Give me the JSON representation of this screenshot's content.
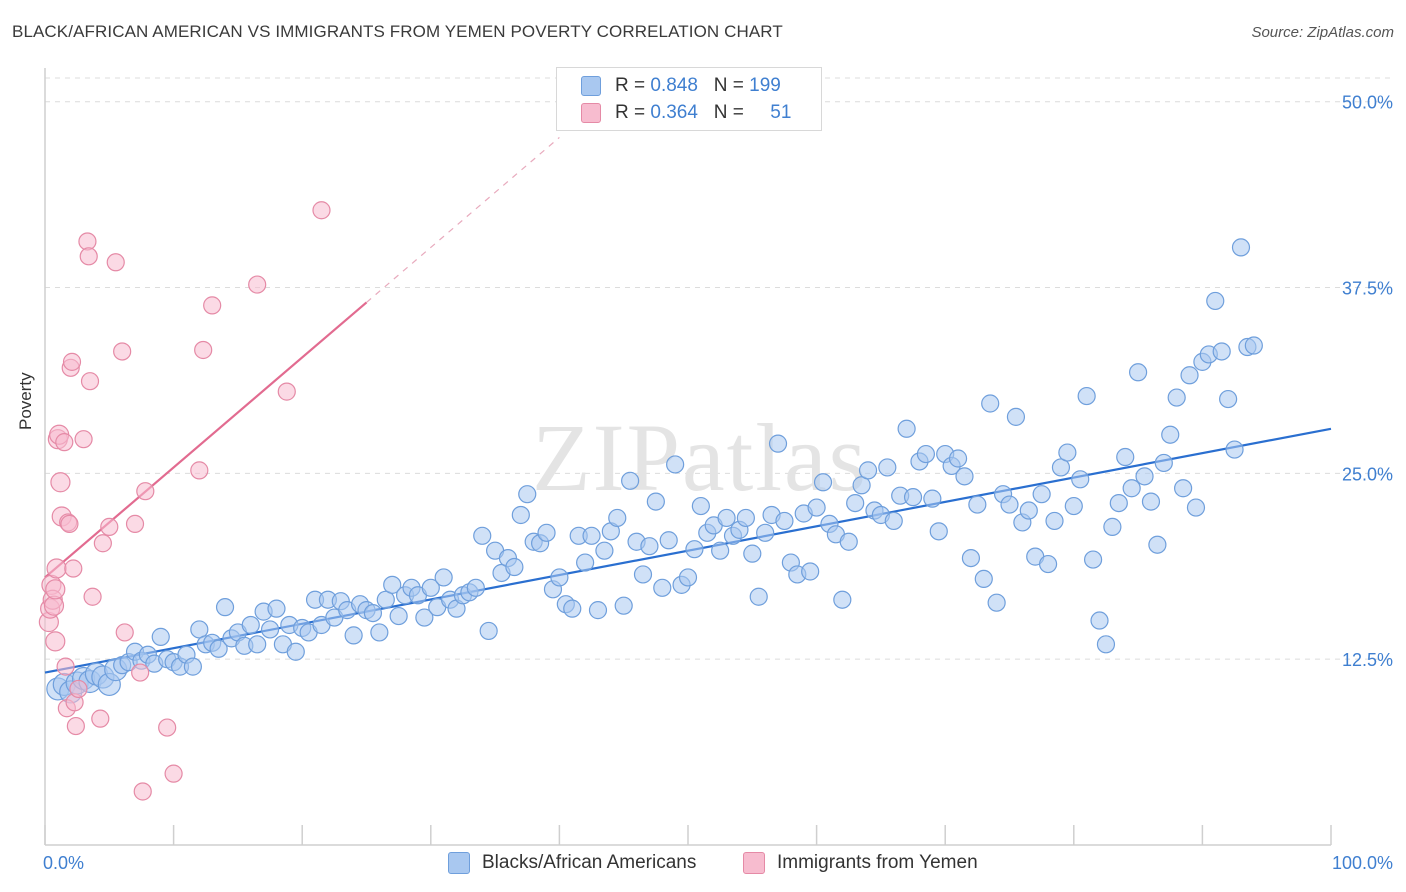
{
  "title": "BLACK/AFRICAN AMERICAN VS IMMIGRANTS FROM YEMEN POVERTY CORRELATION CHART",
  "source": "Source: ZipAtlas.com",
  "watermark": "ZIPatlas",
  "legend": {
    "r_label": "R =",
    "n_label": "N =",
    "rows": [
      {
        "r": "0.848",
        "n": "199",
        "color": "#a9c8f0",
        "border": "#6f9fdc"
      },
      {
        "r": "0.364",
        "n": "51",
        "color": "#f7bccf",
        "border": "#e58aa6"
      }
    ]
  },
  "bottom_legend": [
    "Blacks/African Americans",
    "Immigrants from Yemen"
  ],
  "chart_data": {
    "type": "scatter",
    "xlabel": "",
    "ylabel": "Poverty",
    "xlim": [
      0,
      100
    ],
    "ylim": [
      0,
      52
    ],
    "x_tick_labels": [
      "0.0%",
      "100.0%"
    ],
    "y_ticks": [
      12.5,
      25.0,
      37.5,
      50.0
    ],
    "y_tick_labels": [
      "12.5%",
      "25.0%",
      "37.5%",
      "50.0%"
    ],
    "grid": true,
    "series": [
      {
        "name": "Blacks/African Americans",
        "color": "#a9c8f0",
        "edge": "#6f9fdc",
        "trend": {
          "x": [
            0,
            100
          ],
          "y": [
            11.6,
            28.0
          ],
          "color": "#2a6fd0",
          "dashed": false
        },
        "points": [
          [
            1,
            10.5
          ],
          [
            1.5,
            10.8
          ],
          [
            2,
            10.3
          ],
          [
            2.5,
            10.9
          ],
          [
            3,
            11.2
          ],
          [
            3.5,
            11.0
          ],
          [
            4,
            11.5
          ],
          [
            4.5,
            11.3
          ],
          [
            5,
            10.8
          ],
          [
            5.5,
            11.8
          ],
          [
            6,
            12.1
          ],
          [
            6.5,
            12.3
          ],
          [
            7,
            13.0
          ],
          [
            7.5,
            12.4
          ],
          [
            8,
            12.8
          ],
          [
            8.5,
            12.2
          ],
          [
            9,
            14.0
          ],
          [
            9.5,
            12.5
          ],
          [
            10,
            12.3
          ],
          [
            10.5,
            12.0
          ],
          [
            11,
            12.8
          ],
          [
            11.5,
            12.0
          ],
          [
            12,
            14.5
          ],
          [
            12.5,
            13.5
          ],
          [
            13,
            13.6
          ],
          [
            13.5,
            13.2
          ],
          [
            14,
            16.0
          ],
          [
            14.5,
            13.9
          ],
          [
            15,
            14.3
          ],
          [
            15.5,
            13.4
          ],
          [
            16,
            14.8
          ],
          [
            16.5,
            13.5
          ],
          [
            17,
            15.7
          ],
          [
            17.5,
            14.5
          ],
          [
            18,
            15.9
          ],
          [
            18.5,
            13.5
          ],
          [
            19,
            14.8
          ],
          [
            19.5,
            13.0
          ],
          [
            20,
            14.6
          ],
          [
            20.5,
            14.3
          ],
          [
            21,
            16.5
          ],
          [
            21.5,
            14.8
          ],
          [
            22,
            16.5
          ],
          [
            22.5,
            15.3
          ],
          [
            23,
            16.4
          ],
          [
            23.5,
            15.8
          ],
          [
            24,
            14.1
          ],
          [
            24.5,
            16.2
          ],
          [
            25,
            15.8
          ],
          [
            25.5,
            15.6
          ],
          [
            26,
            14.3
          ],
          [
            26.5,
            16.5
          ],
          [
            27,
            17.5
          ],
          [
            27.5,
            15.4
          ],
          [
            28,
            16.8
          ],
          [
            28.5,
            17.3
          ],
          [
            29,
            16.8
          ],
          [
            29.5,
            15.3
          ],
          [
            30,
            17.3
          ],
          [
            30.5,
            16.0
          ],
          [
            31,
            18.0
          ],
          [
            31.5,
            16.5
          ],
          [
            32,
            15.9
          ],
          [
            32.5,
            16.8
          ],
          [
            33,
            17.0
          ],
          [
            33.5,
            17.3
          ],
          [
            34,
            20.8
          ],
          [
            34.5,
            14.4
          ],
          [
            35,
            19.8
          ],
          [
            35.5,
            18.3
          ],
          [
            36,
            19.3
          ],
          [
            36.5,
            18.7
          ],
          [
            37,
            22.2
          ],
          [
            37.5,
            23.6
          ],
          [
            38,
            20.4
          ],
          [
            38.5,
            20.3
          ],
          [
            39,
            21.0
          ],
          [
            39.5,
            17.2
          ],
          [
            40,
            18.0
          ],
          [
            40.5,
            16.2
          ],
          [
            41,
            15.9
          ],
          [
            41.5,
            20.8
          ],
          [
            42,
            19.0
          ],
          [
            42.5,
            20.8
          ],
          [
            43,
            15.8
          ],
          [
            43.5,
            19.8
          ],
          [
            44,
            21.1
          ],
          [
            44.5,
            22.0
          ],
          [
            45,
            16.1
          ],
          [
            45.5,
            24.5
          ],
          [
            46,
            20.4
          ],
          [
            46.5,
            18.2
          ],
          [
            47,
            20.1
          ],
          [
            47.5,
            23.1
          ],
          [
            48,
            17.3
          ],
          [
            48.5,
            20.5
          ],
          [
            49,
            25.6
          ],
          [
            49.5,
            17.5
          ],
          [
            50,
            18.0
          ],
          [
            50.5,
            19.9
          ],
          [
            51,
            22.8
          ],
          [
            51.5,
            21.0
          ],
          [
            52,
            21.5
          ],
          [
            52.5,
            19.8
          ],
          [
            53,
            22.0
          ],
          [
            53.5,
            20.8
          ],
          [
            54,
            21.2
          ],
          [
            54.5,
            22.0
          ],
          [
            55,
            19.6
          ],
          [
            55.5,
            16.7
          ],
          [
            56,
            21.0
          ],
          [
            56.5,
            22.2
          ],
          [
            57,
            27.0
          ],
          [
            57.5,
            21.8
          ],
          [
            58,
            19.0
          ],
          [
            58.5,
            18.2
          ],
          [
            59,
            22.3
          ],
          [
            59.5,
            18.4
          ],
          [
            60,
            22.7
          ],
          [
            60.5,
            24.4
          ],
          [
            61,
            21.6
          ],
          [
            61.5,
            20.9
          ],
          [
            62,
            16.5
          ],
          [
            62.5,
            20.4
          ],
          [
            63,
            23.0
          ],
          [
            63.5,
            24.2
          ],
          [
            64,
            25.2
          ],
          [
            64.5,
            22.5
          ],
          [
            65,
            22.2
          ],
          [
            65.5,
            25.4
          ],
          [
            66,
            21.8
          ],
          [
            66.5,
            23.5
          ],
          [
            67,
            28.0
          ],
          [
            67.5,
            23.4
          ],
          [
            68,
            25.8
          ],
          [
            68.5,
            26.3
          ],
          [
            69,
            23.3
          ],
          [
            69.5,
            21.1
          ],
          [
            70,
            26.3
          ],
          [
            70.5,
            25.5
          ],
          [
            71,
            26.0
          ],
          [
            71.5,
            24.8
          ],
          [
            72,
            19.3
          ],
          [
            72.5,
            22.9
          ],
          [
            73,
            17.9
          ],
          [
            73.5,
            29.7
          ],
          [
            74,
            16.3
          ],
          [
            74.5,
            23.6
          ],
          [
            75,
            22.9
          ],
          [
            75.5,
            28.8
          ],
          [
            76,
            21.7
          ],
          [
            76.5,
            22.5
          ],
          [
            77,
            19.4
          ],
          [
            77.5,
            23.6
          ],
          [
            78,
            18.9
          ],
          [
            78.5,
            21.8
          ],
          [
            79,
            25.4
          ],
          [
            79.5,
            26.4
          ],
          [
            80,
            22.8
          ],
          [
            80.5,
            24.6
          ],
          [
            81,
            30.2
          ],
          [
            81.5,
            19.2
          ],
          [
            82,
            15.1
          ],
          [
            82.5,
            13.5
          ],
          [
            83,
            21.4
          ],
          [
            83.5,
            23.0
          ],
          [
            84,
            26.1
          ],
          [
            84.5,
            24.0
          ],
          [
            85,
            31.8
          ],
          [
            85.5,
            24.8
          ],
          [
            86,
            23.1
          ],
          [
            86.5,
            20.2
          ],
          [
            87,
            25.7
          ],
          [
            87.5,
            27.6
          ],
          [
            88,
            30.1
          ],
          [
            88.5,
            24.0
          ],
          [
            89,
            31.6
          ],
          [
            89.5,
            22.7
          ],
          [
            90,
            32.5
          ],
          [
            90.5,
            33.0
          ],
          [
            91,
            36.6
          ],
          [
            91.5,
            33.2
          ],
          [
            92,
            30.0
          ],
          [
            92.5,
            26.6
          ],
          [
            93,
            40.2
          ],
          [
            93.5,
            33.5
          ],
          [
            94,
            33.6
          ]
        ]
      },
      {
        "name": "Immigrants from Yemen",
        "color": "#f7bccf",
        "edge": "#e58aa6",
        "trend": {
          "x": [
            0,
            25
          ],
          "y": [
            18.0,
            36.5
          ],
          "x_dash_end": 40,
          "y_dash_end": 47.6,
          "color": "#e26b90",
          "dashed": true
        },
        "points": [
          [
            0.3,
            15.0
          ],
          [
            0.4,
            15.9
          ],
          [
            0.5,
            17.5
          ],
          [
            0.6,
            16.5
          ],
          [
            0.7,
            16.1
          ],
          [
            0.8,
            17.2
          ],
          [
            0.8,
            13.7
          ],
          [
            0.9,
            18.6
          ],
          [
            1.0,
            27.3
          ],
          [
            1.1,
            27.6
          ],
          [
            1.2,
            24.4
          ],
          [
            1.3,
            22.1
          ],
          [
            1.5,
            27.1
          ],
          [
            1.6,
            12.0
          ],
          [
            1.7,
            9.2
          ],
          [
            1.8,
            21.7
          ],
          [
            1.9,
            21.6
          ],
          [
            2.0,
            32.1
          ],
          [
            2.1,
            32.5
          ],
          [
            2.2,
            18.6
          ],
          [
            2.3,
            9.6
          ],
          [
            2.4,
            8.0
          ],
          [
            2.6,
            10.5
          ],
          [
            3.0,
            27.3
          ],
          [
            3.3,
            40.6
          ],
          [
            3.4,
            39.6
          ],
          [
            3.5,
            31.2
          ],
          [
            3.7,
            16.7
          ],
          [
            4.3,
            8.5
          ],
          [
            4.5,
            20.3
          ],
          [
            5.0,
            21.4
          ],
          [
            5.5,
            39.2
          ],
          [
            6.0,
            33.2
          ],
          [
            6.2,
            14.3
          ],
          [
            7.0,
            21.6
          ],
          [
            7.4,
            11.6
          ],
          [
            7.6,
            3.6
          ],
          [
            7.8,
            23.8
          ],
          [
            9.5,
            7.9
          ],
          [
            10.0,
            4.8
          ],
          [
            12.0,
            25.2
          ],
          [
            12.3,
            33.3
          ],
          [
            13.0,
            36.3
          ],
          [
            16.5,
            37.7
          ],
          [
            18.8,
            30.5
          ],
          [
            21.5,
            42.7
          ]
        ]
      }
    ]
  }
}
